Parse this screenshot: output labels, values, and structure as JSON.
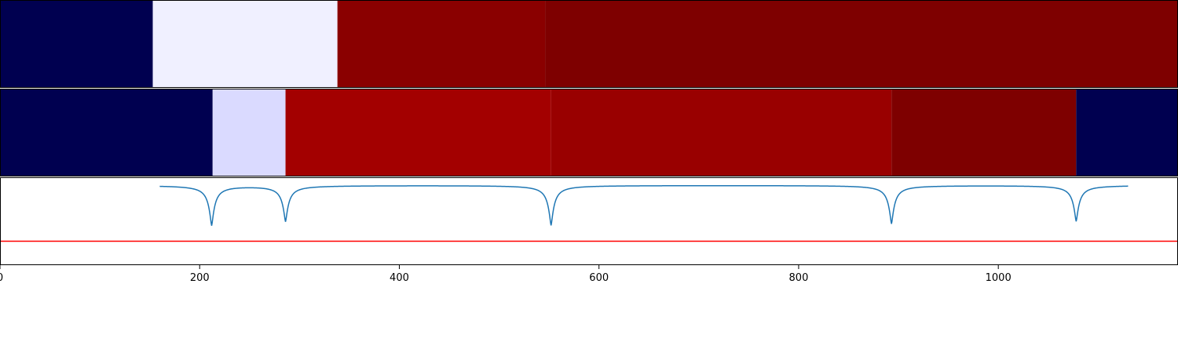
{
  "chart_data": {
    "type": "heatmap",
    "xlim": [
      0,
      1180
    ],
    "xticks": [
      0,
      200,
      400,
      600,
      800,
      1000
    ],
    "xtick_labels": [
      "0",
      "200",
      "400",
      "600",
      "800",
      "1000"
    ],
    "rows": [
      {
        "segments": [
          {
            "start": 0,
            "end": 153,
            "color": "#000050"
          },
          {
            "start": 153,
            "end": 338,
            "color": "#f0f0ff"
          },
          {
            "start": 338,
            "end": 546,
            "color": "#8a0000"
          },
          {
            "start": 546,
            "end": 1180,
            "color": "#7e0000"
          }
        ]
      },
      {
        "segments": [
          {
            "start": 0,
            "end": 213,
            "color": "#000050"
          },
          {
            "start": 213,
            "end": 286,
            "color": "#dadaff"
          },
          {
            "start": 286,
            "end": 552,
            "color": "#a30000"
          },
          {
            "start": 552,
            "end": 893,
            "color": "#990000"
          },
          {
            "start": 893,
            "end": 1078,
            "color": "#7e0000"
          },
          {
            "start": 1078,
            "end": 1180,
            "color": "#000050"
          }
        ]
      }
    ],
    "signal": {
      "color": "#1f77b4",
      "x_range": [
        160,
        1130
      ],
      "baseline": 0,
      "ylim": [
        -1.0,
        0.1
      ],
      "dips": [
        {
          "x": 212,
          "depth": -0.5
        },
        {
          "x": 286,
          "depth": -0.45
        },
        {
          "x": 552,
          "depth": -0.5
        },
        {
          "x": 893,
          "depth": -0.48
        },
        {
          "x": 1078,
          "depth": -0.45
        }
      ]
    },
    "threshold": {
      "y": -0.7,
      "color": "#ff0000"
    }
  }
}
